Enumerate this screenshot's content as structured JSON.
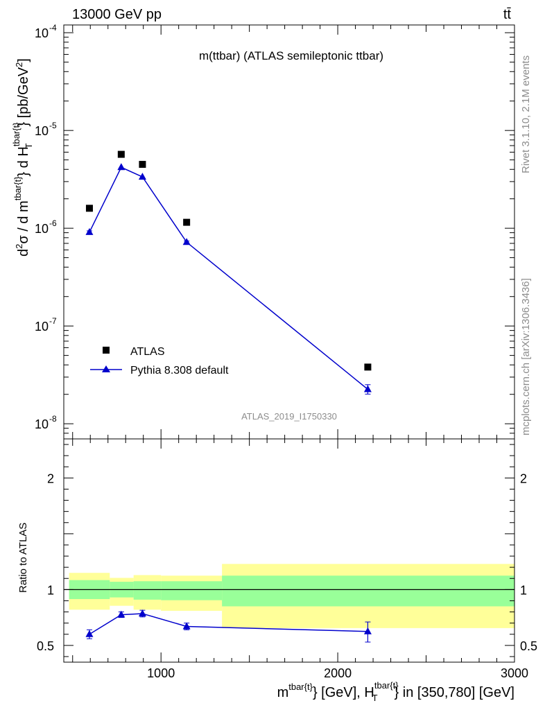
{
  "header": {
    "left": "13000 GeV pp",
    "right": "tt̄"
  },
  "side_labels": {
    "top": "Rivet 3.1.10,  2.1M events",
    "bottom": "mcplots.cern.ch [arXiv:1306.3436]"
  },
  "colors": {
    "data": "#000000",
    "mc": "#0000cc",
    "band_inner": "#99ff99",
    "band_outer": "#ffff99"
  },
  "chart_data": [
    {
      "type": "line",
      "title": "m(ttbar) (ATLAS semileptonic ttbar)",
      "watermark": "ATLAS_2019_I1750330",
      "ylabel": "d²σ / d m^{tbar{t}} d H_T^{tbar{t}} [pb/GeV²]",
      "yscale": "log",
      "xlim": [
        450,
        3000
      ],
      "ylim": [
        7e-09,
        0.00012
      ],
      "yticks": [
        {
          "value": 1e-08,
          "label": "10",
          "exp": "-8"
        },
        {
          "value": 1e-07,
          "label": "10",
          "exp": "-7"
        },
        {
          "value": 1e-06,
          "label": "10",
          "exp": "-6"
        },
        {
          "value": 1e-05,
          "label": "10",
          "exp": "-5"
        },
        {
          "value": 0.0001,
          "label": "10",
          "exp": "-4"
        }
      ],
      "legend_position": "lower-left",
      "series": [
        {
          "name": "ATLAS",
          "marker": "square",
          "x": [
            595,
            775,
            895,
            1145,
            2170
          ],
          "y": [
            1.6e-06,
            5.7e-06,
            4.5e-06,
            1.15e-06,
            3.8e-08
          ]
        },
        {
          "name": "Pythia 8.308 default",
          "marker": "triangle",
          "x": [
            595,
            775,
            895,
            1145,
            2170
          ],
          "y": [
            9.1e-07,
            4.2e-06,
            3.35e-06,
            7.2e-07,
            2.25e-08
          ],
          "err_low": [
            3e-08,
            6e-08,
            5e-08,
            2e-08,
            2.4e-09
          ],
          "err_high": [
            3e-08,
            6e-08,
            5e-08,
            2e-08,
            2.6e-09
          ]
        }
      ]
    },
    {
      "type": "line",
      "ylabel": "Ratio to ATLAS",
      "xlabel": "m^{tbar{t}} [GeV], H_T^{tbar{t}} in [350,780] [GeV]",
      "xlim": [
        450,
        3000
      ],
      "ylim": [
        0.35,
        2.35
      ],
      "xticks": [
        {
          "value": 1000,
          "label": "1000"
        },
        {
          "value": 2000,
          "label": "2000"
        },
        {
          "value": 3000,
          "label": "3000"
        }
      ],
      "yticks": [
        {
          "value": 0.5,
          "label": "0.5"
        },
        {
          "value": 1,
          "label": "1"
        },
        {
          "value": 2,
          "label": "2"
        }
      ],
      "bands": [
        {
          "x0": 480,
          "x1": 710,
          "inner": [
            0.915,
            1.085
          ],
          "outer": [
            0.82,
            1.15
          ]
        },
        {
          "x0": 710,
          "x1": 845,
          "inner": [
            0.93,
            1.07
          ],
          "outer": [
            0.855,
            1.105
          ]
        },
        {
          "x0": 845,
          "x1": 1000,
          "inner": [
            0.91,
            1.075
          ],
          "outer": [
            0.82,
            1.13
          ]
        },
        {
          "x0": 1000,
          "x1": 1345,
          "inner": [
            0.905,
            1.075
          ],
          "outer": [
            0.81,
            1.125
          ]
        },
        {
          "x0": 1345,
          "x1": 3000,
          "inner": [
            0.85,
            1.125
          ],
          "outer": [
            0.655,
            1.23
          ]
        }
      ],
      "series": [
        {
          "name": "Pythia 8.308 default",
          "x": [
            595,
            775,
            895,
            1145,
            2170
          ],
          "y": [
            0.6,
            0.775,
            0.785,
            0.67,
            0.625
          ],
          "err_low": [
            0.04,
            0.025,
            0.03,
            0.03,
            0.095
          ],
          "err_high": [
            0.04,
            0.025,
            0.03,
            0.03,
            0.085
          ]
        }
      ]
    }
  ]
}
